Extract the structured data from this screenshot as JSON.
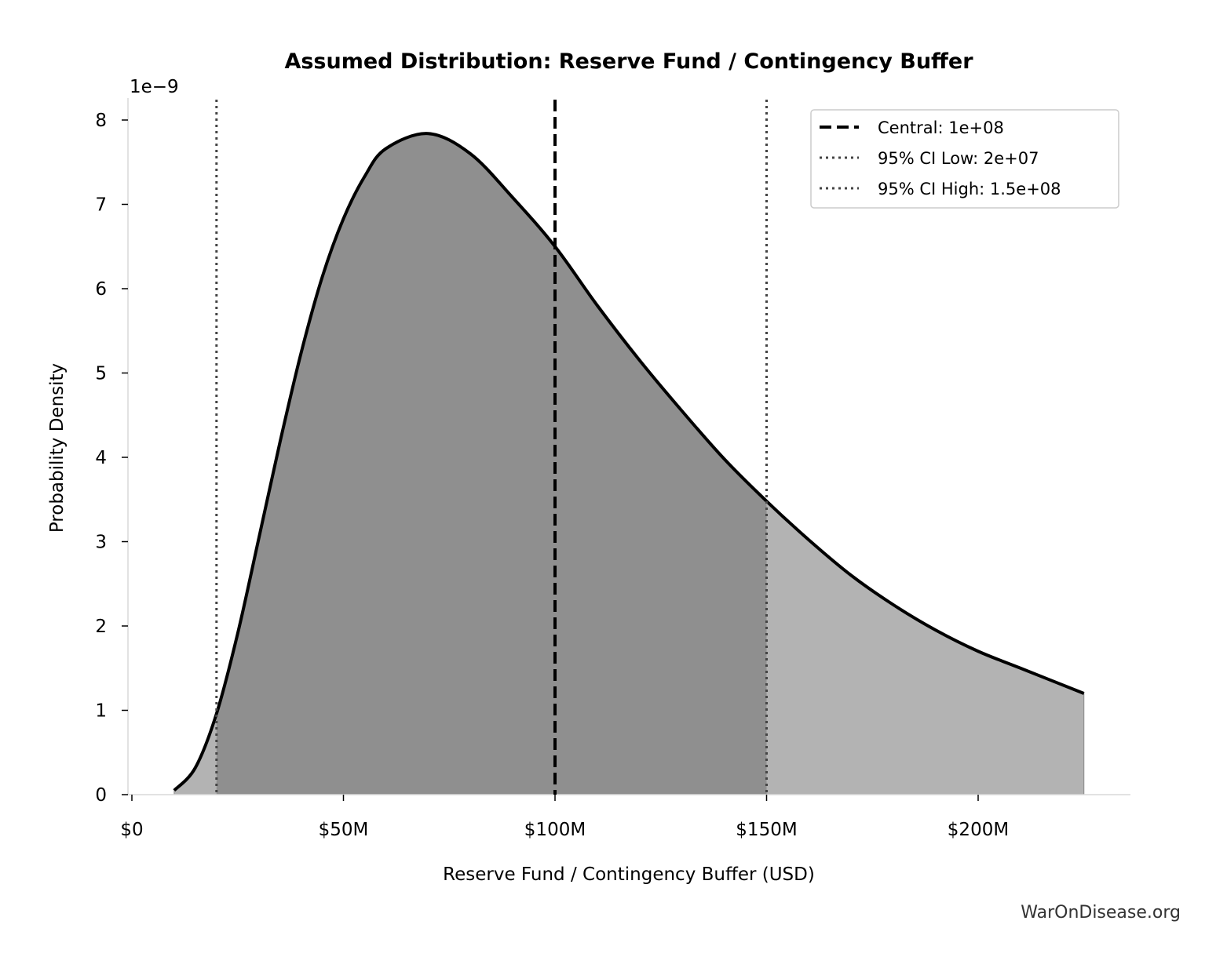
{
  "chart_data": {
    "type": "area",
    "title": "Assumed Distribution: Reserve Fund / Contingency Buffer",
    "xlabel": "Reserve Fund / Contingency Buffer (USD)",
    "ylabel": "Probability Density",
    "y_offset_label": "1e−9",
    "xlim": [
      -1,
      236
    ],
    "ylim": [
      0,
      8.25
    ],
    "x_unit": "millions USD",
    "x_ticks": [
      0,
      50,
      100,
      150,
      200
    ],
    "x_tick_labels": [
      "$0",
      "$50M",
      "$100M",
      "$150M",
      "$200M"
    ],
    "y_ticks": [
      0,
      1,
      2,
      3,
      4,
      5,
      6,
      7,
      8
    ],
    "y_tick_labels": [
      "0",
      "1",
      "2",
      "3",
      "4",
      "5",
      "6",
      "7",
      "8"
    ],
    "grid": false,
    "legend_position": "top-right",
    "series": [
      {
        "x": [
          10,
          15,
          20,
          25,
          30,
          35,
          40,
          45,
          50,
          55,
          60,
          70,
          80,
          90,
          100,
          110,
          120,
          130,
          140,
          150,
          160,
          170,
          180,
          190,
          200,
          210,
          225
        ],
        "y": [
          0.05,
          0.32,
          0.96,
          1.91,
          3.04,
          4.18,
          5.24,
          6.14,
          6.83,
          7.33,
          7.66,
          7.84,
          7.6,
          7.08,
          6.5,
          5.8,
          5.15,
          4.55,
          3.98,
          3.48,
          3.02,
          2.6,
          2.25,
          1.95,
          1.7,
          1.5,
          1.2
        ]
      }
    ],
    "shaded_interval": [
      20,
      150
    ],
    "reference_lines": [
      {
        "label": "Central: 1e+08",
        "x": 100,
        "style": "dashed",
        "color": "#000000"
      },
      {
        "label": "95% CI Low: 2e+07",
        "x": 20,
        "style": "dotted",
        "color": "#444444"
      },
      {
        "label": "95% CI High: 1.5e+08",
        "x": 150,
        "style": "dotted",
        "color": "#444444"
      }
    ],
    "colors": {
      "curve": "#000000",
      "fill_tail": "#b3b3b3",
      "fill_ci": "#8f8f8f",
      "spine": "#d9d9d9"
    }
  },
  "watermark": "WarOnDisease.org"
}
